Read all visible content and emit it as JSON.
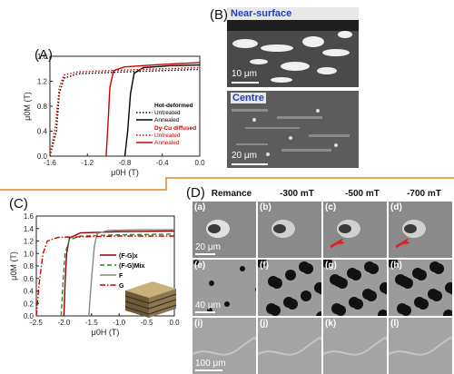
{
  "panels": {
    "A": {
      "label": "(A)"
    },
    "B": {
      "label": "(B)",
      "top_title": "Near-surface",
      "bottom_title": "Centre",
      "scale_top": "10 μm",
      "scale_bottom": "20 μm"
    },
    "C": {
      "label": "(C)"
    },
    "D": {
      "label": "(D)",
      "columns": [
        "Remance",
        "-300 mT",
        "-500 mT",
        "-700 mT"
      ],
      "row_labels": [
        [
          "(a)",
          "(b)",
          "(c)",
          "(d)"
        ],
        [
          "(e)",
          "(f)",
          "(g)",
          "(h)"
        ],
        [
          "(i)",
          "(j)",
          "(k)",
          "(l)"
        ]
      ],
      "scales": [
        "20 μm",
        "40 μm",
        "100 μm"
      ]
    }
  },
  "chart_data": [
    {
      "type": "line",
      "panel": "(A)",
      "xlabel": "μ0H (T)",
      "ylabel": "μ0M (T)",
      "xlim": [
        -1.6,
        0.0
      ],
      "ylim": [
        0.0,
        1.6
      ],
      "xticks": [
        "-1.6",
        "-1.2",
        "-0.8",
        "-0.4",
        "0.0"
      ],
      "yticks": [
        "0.0",
        "0.4",
        "0.8",
        "1.2",
        "1.6"
      ],
      "legend": {
        "group1_title": "Hot-deformed",
        "group2_title": "Dy-Cu diffused",
        "entries": [
          "Untreated",
          "Annealed",
          "Untreated",
          "Annealed"
        ]
      },
      "series": [
        {
          "name": "Untreated",
          "group": "Hot-deformed",
          "style": "dotted",
          "color": "#000000",
          "points": [
            [
              -1.6,
              0
            ],
            [
              -1.53,
              0.4
            ],
            [
              -1.5,
              1.0
            ],
            [
              -1.45,
              1.25
            ],
            [
              -1.3,
              1.32
            ],
            [
              -0.8,
              1.35
            ],
            [
              -0.4,
              1.37
            ],
            [
              0,
              1.39
            ]
          ]
        },
        {
          "name": "Annealed",
          "group": "Hot-deformed",
          "style": "solid",
          "color": "#000000",
          "points": [
            [
              -0.8,
              0
            ],
            [
              -0.77,
              0.4
            ],
            [
              -0.74,
              1.0
            ],
            [
              -0.7,
              1.33
            ],
            [
              -0.6,
              1.42
            ],
            [
              -0.3,
              1.45
            ],
            [
              0,
              1.46
            ]
          ]
        },
        {
          "name": "Untreated",
          "group": "Dy-Cu diffused",
          "style": "dotted",
          "color": "#cc0000",
          "points": [
            [
              -1.6,
              0
            ],
            [
              -1.54,
              0.5
            ],
            [
              -1.5,
              1.1
            ],
            [
              -1.45,
              1.3
            ],
            [
              -1.3,
              1.35
            ],
            [
              -0.8,
              1.38
            ],
            [
              -0.4,
              1.4
            ],
            [
              0,
              1.42
            ]
          ]
        },
        {
          "name": "Annealed",
          "group": "Dy-Cu diffused",
          "style": "solid",
          "color": "#cc0000",
          "points": [
            [
              -1.0,
              0
            ],
            [
              -0.98,
              0.5
            ],
            [
              -0.96,
              1.1
            ],
            [
              -0.92,
              1.37
            ],
            [
              -0.8,
              1.43
            ],
            [
              -0.4,
              1.47
            ],
            [
              0,
              1.5
            ]
          ]
        }
      ]
    },
    {
      "type": "line",
      "panel": "(C)",
      "xlabel": "μ0H (T)",
      "ylabel": "μ0M (T)",
      "xlim": [
        -2.5,
        0.0
      ],
      "ylim": [
        0.0,
        1.6
      ],
      "xticks": [
        "-2.5",
        "-2.0",
        "-1.5",
        "-1.0",
        "-0.5",
        "0.0"
      ],
      "yticks": [
        "0.0",
        "0.2",
        "0.4",
        "0.6",
        "0.8",
        "1.0",
        "1.2",
        "1.4",
        "1.6"
      ],
      "legend": {
        "entries": [
          "(F-G)x",
          "(F-G)Mix",
          "F",
          "G"
        ]
      },
      "series": [
        {
          "name": "(F-G)x",
          "style": "solid",
          "color": "#8b0000",
          "points": [
            [
              -2.0,
              0
            ],
            [
              -1.98,
              0.5
            ],
            [
              -1.95,
              1.0
            ],
            [
              -1.9,
              1.25
            ],
            [
              -1.7,
              1.33
            ],
            [
              -1.0,
              1.35
            ],
            [
              0,
              1.36
            ]
          ]
        },
        {
          "name": "(F-G)Mix",
          "style": "dashed",
          "color": "#2e8b2e",
          "points": [
            [
              -2.05,
              0
            ],
            [
              -2.02,
              0.5
            ],
            [
              -1.98,
              1.0
            ],
            [
              -1.9,
              1.22
            ],
            [
              -1.7,
              1.28
            ],
            [
              -1.0,
              1.3
            ],
            [
              0,
              1.31
            ]
          ]
        },
        {
          "name": "F",
          "style": "solid",
          "color": "#888888",
          "points": [
            [
              -1.55,
              0
            ],
            [
              -1.5,
              0.6
            ],
            [
              -1.45,
              1.1
            ],
            [
              -1.4,
              1.32
            ],
            [
              -1.2,
              1.37
            ],
            [
              -0.6,
              1.38
            ],
            [
              0,
              1.38
            ]
          ]
        },
        {
          "name": "G",
          "style": "dashdot",
          "color": "#cc0000",
          "points": [
            [
              -2.5,
              0
            ],
            [
              -2.45,
              0.5
            ],
            [
              -2.38,
              1.0
            ],
            [
              -2.3,
              1.2
            ],
            [
              -2.1,
              1.26
            ],
            [
              -1.0,
              1.28
            ],
            [
              0,
              1.28
            ]
          ]
        }
      ]
    }
  ]
}
